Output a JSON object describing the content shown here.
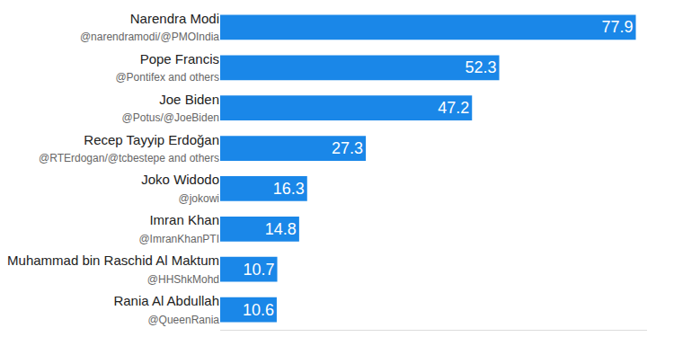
{
  "chart_data": {
    "type": "bar",
    "orientation": "horizontal",
    "categories": [
      "Narendra Modi",
      "Pope Francis",
      "Joe Biden",
      "Recep Tayyip Erdoğan",
      "Joko Widodo",
      "Imran Khan",
      "Muhammad bin Raschid Al Maktum",
      "Rania Al Abdullah"
    ],
    "handles": [
      "@narendramodi/@PMOIndia",
      "@Pontifex and others",
      "@Potus/@JoeBiden",
      "@RTErdogan/@tcbestepe and others",
      "@jokowi",
      "@ImranKhanPTI",
      "@HHShkMohd",
      "@QueenRania"
    ],
    "values": [
      77.9,
      52.3,
      47.2,
      27.3,
      16.3,
      14.8,
      10.7,
      10.6
    ],
    "color": "#1a87e8",
    "xlim": [
      0,
      80
    ],
    "xticks": [],
    "tick_labels": "y",
    "grid": false,
    "data_labels": true
  }
}
